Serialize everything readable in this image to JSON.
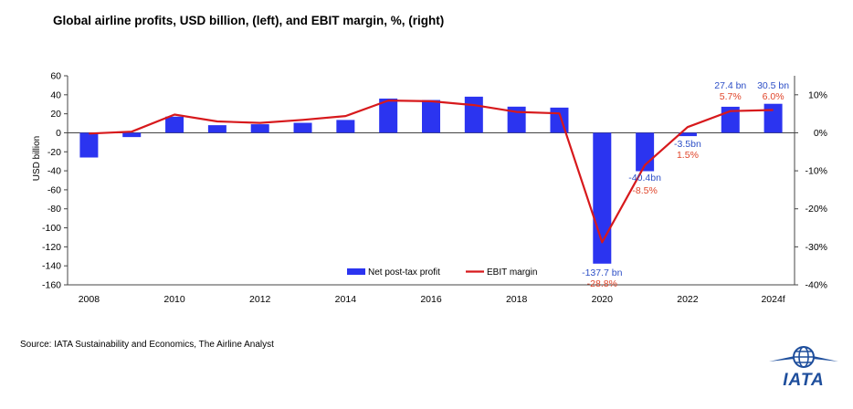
{
  "chart_data": {
    "type": "bar",
    "title": "Global airline profits, USD billion, (left), and EBIT margin, %, (right)",
    "ylabel": "USD billion",
    "ylim": [
      -160,
      60
    ],
    "y_ticks": [
      60,
      40,
      20,
      0,
      -20,
      -40,
      -60,
      -80,
      -100,
      -120,
      -140,
      -160
    ],
    "y2lim": [
      -40,
      15
    ],
    "y2_ticks": [
      10,
      0,
      -10,
      -20,
      -30,
      -40
    ],
    "y2_tick_labels": [
      "10%",
      "0%",
      "-10%",
      "-20%",
      "-30%",
      "-40%"
    ],
    "categories": [
      "2008",
      "2009",
      "2010",
      "2011",
      "2012",
      "2013",
      "2014",
      "2015",
      "2016",
      "2017",
      "2018",
      "2019",
      "2020",
      "2021",
      "2022",
      "2023",
      "2024f"
    ],
    "x_tick_labels": [
      "2008",
      "",
      "2010",
      "",
      "2012",
      "",
      "2014",
      "",
      "2016",
      "",
      "2018",
      "",
      "2020",
      "",
      "2022",
      "",
      "2024f"
    ],
    "series": [
      {
        "name": "Net post-tax profit",
        "type": "bar",
        "axis": "left",
        "color": "#2b34f0",
        "values": [
          -26,
          -4.5,
          17,
          8,
          9,
          10.5,
          13.5,
          36,
          34.5,
          38,
          27.5,
          26.5,
          -137.7,
          -40.4,
          -3.5,
          27.4,
          30.5
        ]
      },
      {
        "name": "EBIT margin",
        "type": "line",
        "axis": "right",
        "color": "#d7191c",
        "values": [
          -0.2,
          0.3,
          4.8,
          3.0,
          2.6,
          3.4,
          4.4,
          8.5,
          8.3,
          7.3,
          5.5,
          5.1,
          -28.8,
          -8.5,
          1.5,
          5.7,
          6.0
        ]
      }
    ],
    "annotations": [
      {
        "category": "2020",
        "bar_label": "-137.7 bn",
        "margin_label": "-28.8%"
      },
      {
        "category": "2021",
        "bar_label": "-40.4bn",
        "margin_label": "-8.5%"
      },
      {
        "category": "2022",
        "bar_label": "-3.5bn",
        "margin_label": "1.5%"
      },
      {
        "category": "2023",
        "bar_label": "27.4 bn",
        "margin_label": "5.7%"
      },
      {
        "category": "2024f",
        "bar_label": "30.5 bn",
        "margin_label": "6.0%"
      }
    ],
    "legend_position": "bottom-center",
    "grid": false
  },
  "footer": {
    "source": "Source: IATA Sustainability and Economics, The Airline Analyst"
  },
  "logo": {
    "text": "IATA",
    "color": "#1e4e9c"
  }
}
